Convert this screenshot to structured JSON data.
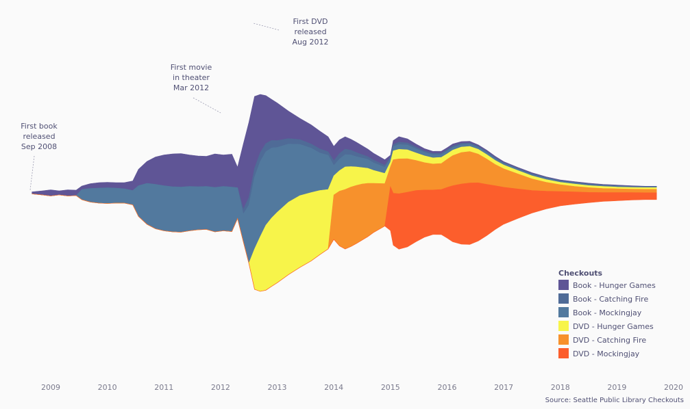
{
  "chart_data": {
    "type": "area",
    "subtype": "streamgraph",
    "source": "Source: Seattle Public Library Checkouts",
    "legend_title": "Checkouts",
    "legend_position": "bottom-right",
    "x_ticks": [
      "2009",
      "2010",
      "2011",
      "2012",
      "2013",
      "2014",
      "2015",
      "2016",
      "2017",
      "2018",
      "2019",
      "2020"
    ],
    "annotations": [
      {
        "lines": [
          "First book",
          "released",
          "Sep 2008"
        ],
        "x": 2008.67
      },
      {
        "lines": [
          "First movie",
          "in theater",
          "Mar 2012"
        ],
        "x": 2012.17
      },
      {
        "lines": [
          "First DVD",
          "released",
          "Aug 2012"
        ],
        "x": 2012.58
      }
    ],
    "x": [
      2008.67,
      2008.85,
      2009.0,
      2009.15,
      2009.3,
      2009.45,
      2009.55,
      2009.7,
      2009.85,
      2010.0,
      2010.15,
      2010.3,
      2010.45,
      2010.55,
      2010.7,
      2010.85,
      2011.0,
      2011.15,
      2011.3,
      2011.45,
      2011.6,
      2011.75,
      2011.9,
      2012.05,
      2012.2,
      2012.3,
      2012.4,
      2012.5,
      2012.6,
      2012.7,
      2012.8,
      2012.9,
      2013.0,
      2013.2,
      2013.4,
      2013.6,
      2013.75,
      2013.9,
      2014.0,
      2014.1,
      2014.2,
      2014.3,
      2014.4,
      2014.5,
      2014.6,
      2014.7,
      2014.8,
      2014.9,
      2015.0,
      2015.05,
      2015.15,
      2015.3,
      2015.45,
      2015.6,
      2015.75,
      2015.9,
      2016.0,
      2016.1,
      2016.25,
      2016.4,
      2016.55,
      2016.7,
      2016.85,
      2017.0,
      2017.25,
      2017.5,
      2017.75,
      2018.0,
      2018.25,
      2018.5,
      2018.75,
      2019.0,
      2019.25,
      2019.5,
      2019.7
    ],
    "series": [
      {
        "name": "Book - Hunger Games",
        "color": "#5f5596",
        "values": [
          6,
          12,
          18,
          12,
          18,
          16,
          10,
          14,
          16,
          16,
          16,
          18,
          28,
          48,
          64,
          80,
          90,
          96,
          98,
          92,
          90,
          88,
          98,
          92,
          96,
          60,
          190,
          220,
          210,
          170,
          140,
          120,
          110,
          80,
          62,
          56,
          52,
          44,
          42,
          40,
          36,
          32,
          30,
          26,
          22,
          20,
          18,
          16,
          6,
          12,
          16,
          12,
          9,
          7,
          6,
          6,
          6,
          6,
          5,
          5,
          4,
          4,
          4,
          3,
          3,
          3,
          2,
          2,
          2,
          2,
          2,
          2,
          2,
          1,
          1
        ]
      },
      {
        "name": "Book - Catching Fire",
        "color": "#4f6b97",
        "values": [
          0,
          0,
          0,
          0,
          0,
          0,
          0,
          0,
          0,
          0,
          0,
          0,
          0,
          0,
          0,
          0,
          0,
          0,
          0,
          0,
          0,
          0,
          0,
          0,
          0,
          0,
          14,
          22,
          26,
          26,
          24,
          22,
          20,
          16,
          14,
          12,
          12,
          10,
          14,
          16,
          16,
          14,
          12,
          10,
          8,
          8,
          7,
          6,
          4,
          6,
          7,
          6,
          5,
          4,
          4,
          4,
          4,
          4,
          4,
          3,
          3,
          3,
          3,
          2,
          2,
          2,
          2,
          2,
          2,
          2,
          1,
          1,
          1,
          1,
          1
        ]
      },
      {
        "name": "Book - Mockingjay",
        "color": "#52799e",
        "values": [
          0,
          0,
          0,
          0,
          0,
          0,
          30,
          40,
          44,
          46,
          44,
          42,
          42,
          90,
          120,
          130,
          132,
          132,
          132,
          130,
          126,
          126,
          130,
          130,
          130,
          90,
          80,
          170,
          210,
          220,
          215,
          205,
          190,
          170,
          150,
          130,
          110,
          100,
          30,
          34,
          36,
          34,
          30,
          28,
          26,
          22,
          20,
          18,
          10,
          12,
          14,
          14,
          12,
          10,
          9,
          8,
          8,
          8,
          7,
          7,
          6,
          6,
          5,
          5,
          4,
          4,
          4,
          3,
          3,
          3,
          3,
          3,
          2,
          2,
          2
        ]
      },
      {
        "name": "DVD - Hunger Games",
        "color": "#f7f44a",
        "values": [
          0,
          0,
          0,
          0,
          0,
          0,
          0,
          0,
          0,
          0,
          0,
          0,
          0,
          0,
          0,
          0,
          0,
          0,
          0,
          0,
          0,
          0,
          0,
          0,
          0,
          0,
          0,
          0,
          118,
          160,
          190,
          200,
          206,
          212,
          210,
          200,
          188,
          174,
          56,
          60,
          66,
          60,
          54,
          48,
          44,
          38,
          34,
          30,
          14,
          26,
          28,
          26,
          22,
          20,
          18,
          18,
          16,
          16,
          16,
          15,
          14,
          13,
          12,
          11,
          10,
          9,
          8,
          7,
          7,
          6,
          6,
          5,
          5,
          5,
          5
        ]
      },
      {
        "name": "DVD - Catching Fire",
        "color": "#f7912c",
        "values": [
          0,
          0,
          0,
          0,
          0,
          0,
          0,
          0,
          0,
          0,
          0,
          0,
          0,
          0,
          0,
          0,
          0,
          0,
          0,
          0,
          0,
          0,
          0,
          0,
          0,
          0,
          0,
          0,
          0,
          0,
          0,
          0,
          0,
          0,
          0,
          0,
          0,
          0,
          130,
          160,
          174,
          174,
          170,
          164,
          156,
          144,
          134,
          124,
          58,
          98,
          102,
          98,
          88,
          80,
          76,
          76,
          82,
          88,
          92,
          92,
          84,
          74,
          62,
          54,
          44,
          34,
          26,
          20,
          16,
          14,
          12,
          11,
          10,
          10,
          10
        ]
      },
      {
        "name": "DVD - Mockingjay",
        "color": "#fc5e2c",
        "values": [
          0,
          0,
          0,
          0,
          0,
          0,
          0,
          0,
          0,
          0,
          0,
          0,
          0,
          0,
          0,
          0,
          0,
          0,
          0,
          0,
          0,
          0,
          0,
          0,
          0,
          0,
          0,
          0,
          0,
          0,
          0,
          0,
          0,
          0,
          0,
          0,
          0,
          0,
          0,
          0,
          0,
          0,
          0,
          0,
          0,
          0,
          0,
          0,
          128,
          152,
          162,
          160,
          150,
          138,
          130,
          132,
          148,
          164,
          176,
          180,
          170,
          150,
          128,
          108,
          86,
          66,
          52,
          42,
          36,
          30,
          26,
          24,
          22,
          20,
          20
        ]
      }
    ]
  }
}
